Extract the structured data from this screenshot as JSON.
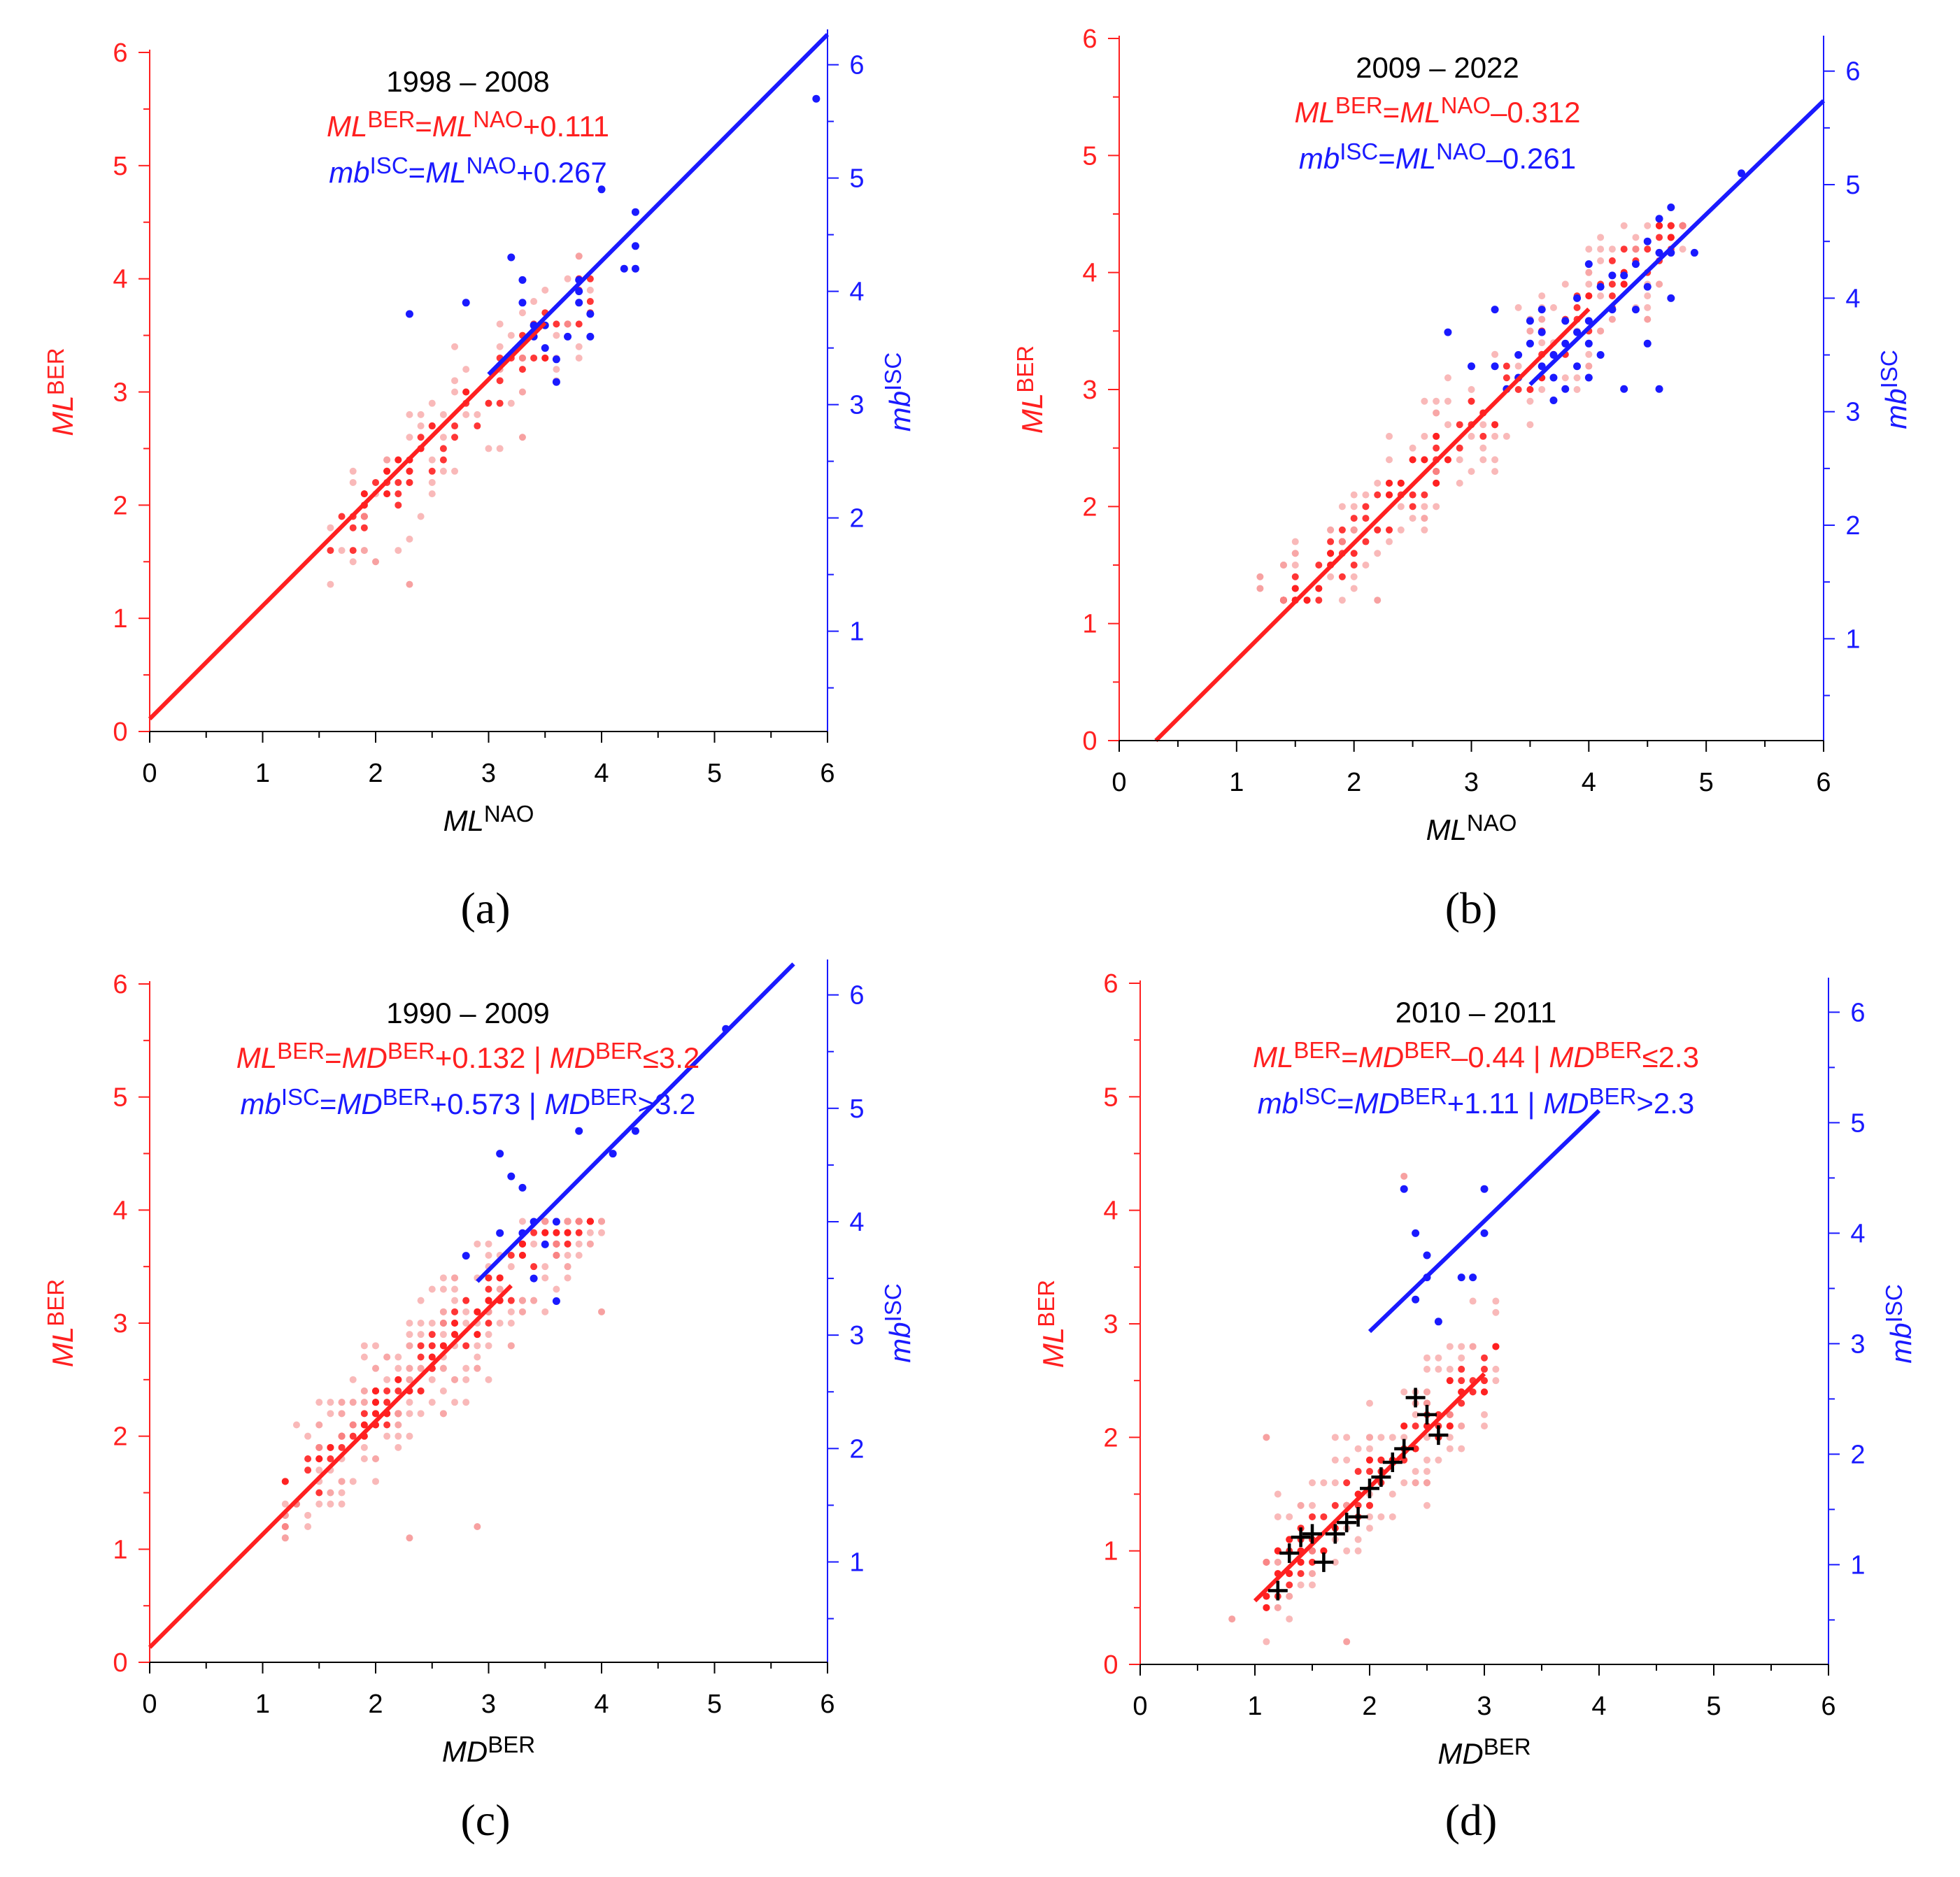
{
  "figure": {
    "background": "#ffffff",
    "colors": {
      "red": "#ff2020",
      "blue": "#1a1aff",
      "black": "#000000",
      "pink": "#f7a1a1"
    }
  },
  "chart_data": [
    {
      "type": "scatter",
      "panel_label": "(a)",
      "title": "1998 – 2008",
      "xlabel": {
        "base": "ML",
        "sup": "NAO"
      },
      "ylabel": {
        "base": "ML",
        "sup": "BER"
      },
      "y2label": {
        "base": "mb",
        "sup": "ISC"
      },
      "xlim": [
        0,
        6
      ],
      "ylim": [
        0,
        6
      ],
      "y2lim": [
        0.3,
        6.3
      ],
      "xticks": [
        "0",
        "1",
        "2",
        "3",
        "4",
        "5",
        "6"
      ],
      "yticks": [
        "0",
        "1",
        "2",
        "3",
        "4",
        "5",
        "6"
      ],
      "y2ticks": [
        "1",
        "2",
        "3",
        "4",
        "5",
        "6"
      ],
      "equations": [
        {
          "color": "red",
          "parts": [
            [
              "i",
              "ML"
            ],
            [
              "s",
              "BER"
            ],
            [
              "n",
              "="
            ],
            [
              "i",
              "ML"
            ],
            [
              "s",
              "NAO"
            ],
            [
              "n",
              "+0.111"
            ]
          ]
        },
        {
          "color": "blue",
          "parts": [
            [
              "i",
              "mb"
            ],
            [
              "s",
              "ISC"
            ],
            [
              "n",
              "="
            ],
            [
              "i",
              "ML"
            ],
            [
              "s",
              "NAO"
            ],
            [
              "n",
              "+0.267"
            ]
          ]
        }
      ],
      "lines": [
        {
          "color": "red",
          "axis": "left",
          "x": [
            0,
            3.5
          ],
          "y": [
            0.111,
            3.611
          ]
        },
        {
          "color": "blue",
          "axis": "right",
          "x": [
            3.0,
            6.0
          ],
          "y": [
            3.267,
            6.267
          ]
        }
      ],
      "red_cluster": {
        "xmin": 1.6,
        "xmax": 3.9,
        "offset": 0.0,
        "spread": 0.55,
        "ymin": 1.3,
        "ymax": 4.2,
        "count": 130
      },
      "red_points": [
        [
          2.3,
          1.3
        ],
        [
          2.0,
          1.5
        ],
        [
          3.3,
          2.6
        ],
        [
          3.8,
          4.2
        ]
      ],
      "blue_points": [
        [
          2.3,
          3.8
        ],
        [
          2.8,
          3.9
        ],
        [
          3.2,
          4.3
        ],
        [
          3.3,
          4.1
        ],
        [
          3.3,
          3.9
        ],
        [
          3.4,
          3.7
        ],
        [
          3.4,
          3.6
        ],
        [
          3.5,
          3.5
        ],
        [
          3.5,
          3.7
        ],
        [
          3.6,
          3.4
        ],
        [
          3.6,
          3.2
        ],
        [
          3.7,
          3.6
        ],
        [
          3.8,
          4.0
        ],
        [
          3.8,
          4.1
        ],
        [
          3.8,
          3.9
        ],
        [
          3.9,
          3.8
        ],
        [
          3.9,
          3.6
        ],
        [
          4.0,
          4.9
        ],
        [
          4.2,
          4.2
        ],
        [
          4.3,
          4.2
        ],
        [
          4.3,
          4.4
        ],
        [
          4.3,
          4.7
        ],
        [
          5.9,
          5.7
        ]
      ],
      "crosses": []
    },
    {
      "type": "scatter",
      "panel_label": "(b)",
      "title": "2009 – 2022",
      "xlabel": {
        "base": "ML",
        "sup": "NAO"
      },
      "ylabel": {
        "base": "ML",
        "sup": "BER"
      },
      "y2label": {
        "base": "mb",
        "sup": "ISC"
      },
      "xlim": [
        0,
        6
      ],
      "ylim": [
        0,
        6
      ],
      "y2lim": [
        0.3,
        6.3
      ],
      "xticks": [
        "0",
        "1",
        "2",
        "3",
        "4",
        "5",
        "6"
      ],
      "yticks": [
        "0",
        "1",
        "2",
        "3",
        "4",
        "5",
        "6"
      ],
      "y2ticks": [
        "1",
        "2",
        "3",
        "4",
        "5",
        "6"
      ],
      "equations": [
        {
          "color": "red",
          "parts": [
            [
              "i",
              "ML"
            ],
            [
              "s",
              "BER"
            ],
            [
              "n",
              "="
            ],
            [
              "i",
              "ML"
            ],
            [
              "s",
              "NAO"
            ],
            [
              "n",
              "–0.312"
            ]
          ]
        },
        {
          "color": "blue",
          "parts": [
            [
              "i",
              "mb"
            ],
            [
              "s",
              "ISC"
            ],
            [
              "n",
              "="
            ],
            [
              "i",
              "ML"
            ],
            [
              "s",
              "NAO"
            ],
            [
              "n",
              "–0.261"
            ]
          ]
        }
      ],
      "lines": [
        {
          "color": "red",
          "axis": "left",
          "x": [
            0.312,
            4.0
          ],
          "y": [
            0.0,
            3.688
          ]
        },
        {
          "color": "blue",
          "axis": "right",
          "x": [
            3.5,
            6.0
          ],
          "y": [
            3.239,
            5.739
          ]
        }
      ],
      "red_cluster": {
        "xmin": 1.4,
        "xmax": 4.9,
        "offset": -0.3,
        "spread": 0.5,
        "ymin": 1.2,
        "ymax": 4.4,
        "count": 260
      },
      "red_points": [
        [
          1.2,
          1.3
        ],
        [
          1.2,
          1.4
        ],
        [
          2.2,
          1.2
        ],
        [
          4.5,
          3.6
        ]
      ],
      "blue_points": [
        [
          2.8,
          3.7
        ],
        [
          3.0,
          3.4
        ],
        [
          3.2,
          3.4
        ],
        [
          3.2,
          3.9
        ],
        [
          3.3,
          3.2
        ],
        [
          3.4,
          3.3
        ],
        [
          3.4,
          3.5
        ],
        [
          3.5,
          3.6
        ],
        [
          3.5,
          3.8
        ],
        [
          3.6,
          3.4
        ],
        [
          3.6,
          3.7
        ],
        [
          3.6,
          3.9
        ],
        [
          3.7,
          3.1
        ],
        [
          3.7,
          3.3
        ],
        [
          3.7,
          3.5
        ],
        [
          3.8,
          3.2
        ],
        [
          3.8,
          3.6
        ],
        [
          3.8,
          3.8
        ],
        [
          3.9,
          3.4
        ],
        [
          3.9,
          3.7
        ],
        [
          3.9,
          4.0
        ],
        [
          4.0,
          3.3
        ],
        [
          4.0,
          3.6
        ],
        [
          4.0,
          3.8
        ],
        [
          4.0,
          4.3
        ],
        [
          4.1,
          3.5
        ],
        [
          4.1,
          4.1
        ],
        [
          4.2,
          3.9
        ],
        [
          4.2,
          4.2
        ],
        [
          4.3,
          3.2
        ],
        [
          4.3,
          4.2
        ],
        [
          4.4,
          3.9
        ],
        [
          4.4,
          4.3
        ],
        [
          4.5,
          3.6
        ],
        [
          4.5,
          4.1
        ],
        [
          4.5,
          4.5
        ],
        [
          4.6,
          3.2
        ],
        [
          4.6,
          4.4
        ],
        [
          4.6,
          4.7
        ],
        [
          4.7,
          4.0
        ],
        [
          4.7,
          4.4
        ],
        [
          4.7,
          4.8
        ],
        [
          4.9,
          4.4
        ],
        [
          5.3,
          5.1
        ]
      ],
      "crosses": []
    },
    {
      "type": "scatter",
      "panel_label": "(c)",
      "title": "1990 – 2009",
      "xlabel": {
        "base": "MD",
        "sup": "BER"
      },
      "ylabel": {
        "base": "ML",
        "sup": "BER"
      },
      "y2label": {
        "base": "mb",
        "sup": "ISC"
      },
      "xlim": [
        0,
        6
      ],
      "ylim": [
        0,
        6
      ],
      "y2lim": [
        0.3,
        6.3
      ],
      "xticks": [
        "0",
        "1",
        "2",
        "3",
        "4",
        "5",
        "6"
      ],
      "yticks": [
        "0",
        "1",
        "2",
        "3",
        "4",
        "5",
        "6"
      ],
      "y2ticks": [
        "1",
        "2",
        "3",
        "4",
        "5",
        "6"
      ],
      "equations": [
        {
          "color": "red",
          "parts": [
            [
              "i",
              "ML"
            ],
            [
              "s",
              "BER"
            ],
            [
              "n",
              "="
            ],
            [
              "i",
              "MD"
            ],
            [
              "s",
              "BER"
            ],
            [
              "n",
              "+0.132 | "
            ],
            [
              "i",
              "MD"
            ],
            [
              "s",
              "BER"
            ],
            [
              "n",
              "≤3.2"
            ]
          ]
        },
        {
          "color": "blue",
          "parts": [
            [
              "i",
              "mb"
            ],
            [
              "s",
              "ISC"
            ],
            [
              "n",
              "="
            ],
            [
              "i",
              "MD"
            ],
            [
              "s",
              "BER"
            ],
            [
              "n",
              "+0.573  | "
            ],
            [
              "i",
              "MD"
            ],
            [
              "s",
              "BER"
            ],
            [
              "n",
              ">3.2"
            ]
          ]
        }
      ],
      "lines": [
        {
          "color": "red",
          "axis": "left",
          "x": [
            0,
            3.2
          ],
          "y": [
            0.132,
            3.332
          ]
        },
        {
          "color": "blue",
          "axis": "right",
          "x": [
            2.9,
            5.7
          ],
          "y": [
            3.473,
            6.273
          ]
        }
      ],
      "red_cluster": {
        "xmin": 1.2,
        "xmax": 4.0,
        "offset": 0.2,
        "spread": 0.6,
        "ymin": 1.1,
        "ymax": 3.9,
        "count": 330
      },
      "red_points": [
        [
          1.2,
          1.3
        ],
        [
          2.3,
          1.1
        ],
        [
          2.9,
          1.2
        ],
        [
          4.0,
          3.1
        ]
      ],
      "blue_points": [
        [
          2.8,
          3.7
        ],
        [
          3.1,
          3.9
        ],
        [
          3.1,
          4.6
        ],
        [
          3.2,
          4.4
        ],
        [
          3.3,
          3.9
        ],
        [
          3.3,
          4.3
        ],
        [
          3.4,
          4.0
        ],
        [
          3.4,
          3.5
        ],
        [
          3.5,
          3.8
        ],
        [
          3.6,
          3.3
        ],
        [
          3.6,
          4.0
        ],
        [
          3.8,
          4.8
        ],
        [
          4.1,
          4.6
        ],
        [
          4.3,
          4.8
        ],
        [
          5.1,
          5.7
        ]
      ],
      "crosses": []
    },
    {
      "type": "scatter",
      "panel_label": "(d)",
      "title": "2010 – 2011",
      "xlabel": {
        "base": "MD",
        "sup": "BER"
      },
      "ylabel": {
        "base": "ML",
        "sup": "BER"
      },
      "y2label": {
        "base": "mb",
        "sup": "ISC"
      },
      "xlim": [
        0,
        6
      ],
      "ylim": [
        0,
        6
      ],
      "y2lim": [
        0.3,
        6.3
      ],
      "xticks": [
        "0",
        "1",
        "2",
        "3",
        "4",
        "5",
        "6"
      ],
      "yticks": [
        "0",
        "1",
        "2",
        "3",
        "4",
        "5",
        "6"
      ],
      "y2ticks": [
        "1",
        "2",
        "3",
        "4",
        "5",
        "6"
      ],
      "equations": [
        {
          "color": "red",
          "parts": [
            [
              "i",
              "ML"
            ],
            [
              "s",
              "BER"
            ],
            [
              "n",
              "="
            ],
            [
              "i",
              "MD"
            ],
            [
              "s",
              "BER"
            ],
            [
              "n",
              "–0.44  | "
            ],
            [
              "i",
              "MD"
            ],
            [
              "s",
              "BER"
            ],
            [
              "n",
              "≤2.3"
            ]
          ]
        },
        {
          "color": "blue",
          "parts": [
            [
              "i",
              "mb"
            ],
            [
              "s",
              "ISC"
            ],
            [
              "n",
              "="
            ],
            [
              "i",
              "MD"
            ],
            [
              "s",
              "BER"
            ],
            [
              "n",
              "+1.11  | "
            ],
            [
              "i",
              "MD"
            ],
            [
              "s",
              "BER"
            ],
            [
              "n",
              ">2.3"
            ]
          ]
        }
      ],
      "lines": [
        {
          "color": "red",
          "axis": "left",
          "x": [
            1.0,
            3.0
          ],
          "y": [
            0.56,
            2.56
          ]
        },
        {
          "color": "blue",
          "axis": "right",
          "x": [
            2.0,
            4.0
          ],
          "y": [
            3.11,
            5.11
          ]
        }
      ],
      "red_cluster": {
        "xmin": 1.1,
        "xmax": 3.1,
        "offset": -0.4,
        "spread": 0.55,
        "ymin": 0.2,
        "ymax": 3.9,
        "count": 200
      },
      "red_points": [
        [
          0.8,
          0.4
        ],
        [
          1.1,
          2.0
        ],
        [
          1.8,
          0.2
        ],
        [
          2.3,
          4.3
        ]
      ],
      "blue_points": [
        [
          2.3,
          4.4
        ],
        [
          2.4,
          4.0
        ],
        [
          2.4,
          3.4
        ],
        [
          2.5,
          3.6
        ],
        [
          2.5,
          3.8
        ],
        [
          2.6,
          3.2
        ],
        [
          2.8,
          3.6
        ],
        [
          2.9,
          3.6
        ],
        [
          3.0,
          4.0
        ],
        [
          3.0,
          4.4
        ]
      ],
      "crosses": [
        [
          1.2,
          0.65
        ],
        [
          1.3,
          0.98
        ],
        [
          1.4,
          1.12
        ],
        [
          1.5,
          1.15
        ],
        [
          1.6,
          0.9
        ],
        [
          1.7,
          1.15
        ],
        [
          1.8,
          1.25
        ],
        [
          1.9,
          1.3
        ],
        [
          2.0,
          1.55
        ],
        [
          2.1,
          1.65
        ],
        [
          2.2,
          1.78
        ],
        [
          2.3,
          1.9
        ],
        [
          2.4,
          2.35
        ],
        [
          2.5,
          2.2
        ],
        [
          2.6,
          2.02
        ]
      ]
    }
  ]
}
